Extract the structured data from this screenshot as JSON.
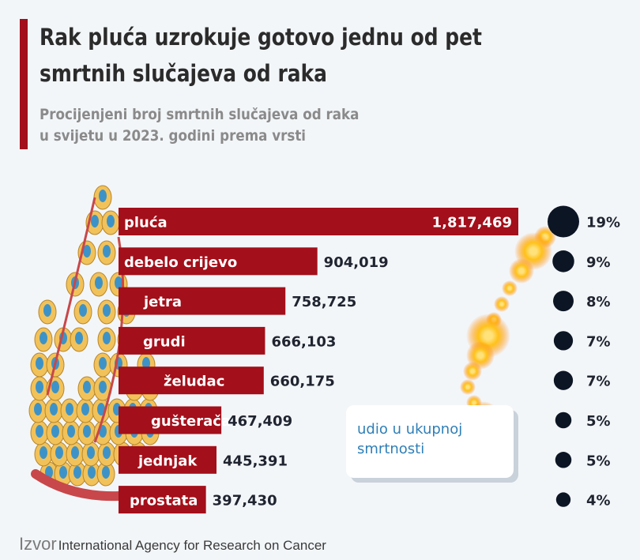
{
  "header": {
    "title": "Rak pluća uzrokuje gotovo jednu od pet smrtnih slučajeva od raka",
    "subtitle_line1": "Procijenjeni broj smrtnih slučajeva od raka",
    "subtitle_line2": "u svijetu u 2023. godini prema vrsti"
  },
  "legend": {
    "share_label": "udio u ukupnoj smrtnosti"
  },
  "source": {
    "label": "Izvor",
    "text": "International Agency for Research on Cancer"
  },
  "colors": {
    "bar": "#a30f1a",
    "circle": "#0c1524",
    "title": "#2b2b2b",
    "subtitle": "#8a8a8a",
    "legend_text": "#2f7fb7"
  },
  "chart_data": {
    "type": "bar",
    "orientation": "horizontal",
    "categories": [
      "pluća",
      "debelo crijevo",
      "jetra",
      "grudi",
      "želudac",
      "gušterača",
      "jednjak",
      "prostata"
    ],
    "values": [
      1817469,
      904019,
      758725,
      666103,
      660175,
      467409,
      445391,
      397430
    ],
    "value_labels": [
      "1,817,469",
      "904,019",
      "758,725",
      "666,103",
      "660,175",
      "467,409",
      "445,391",
      "397,430"
    ],
    "share_percent": [
      19,
      9,
      8,
      7,
      7,
      5,
      5,
      4
    ],
    "share_labels": [
      "19%",
      "9%",
      "8%",
      "7%",
      "7%",
      "5%",
      "5%",
      "4%"
    ]
  }
}
